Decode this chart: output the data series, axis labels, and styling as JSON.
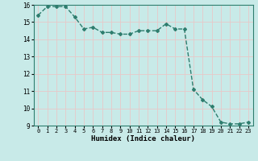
{
  "x": [
    0,
    1,
    2,
    3,
    4,
    5,
    6,
    7,
    8,
    9,
    10,
    11,
    12,
    13,
    14,
    15,
    16,
    17,
    18,
    19,
    20,
    21,
    22,
    23
  ],
  "y": [
    15.4,
    15.9,
    15.9,
    15.9,
    15.3,
    14.6,
    14.7,
    14.4,
    14.4,
    14.3,
    14.3,
    14.5,
    14.5,
    14.5,
    14.9,
    14.6,
    14.6,
    11.1,
    10.5,
    10.1,
    9.2,
    9.1,
    9.1,
    9.2
  ],
  "xlabel": "Humidex (Indice chaleur)",
  "ylim": [
    9,
    16
  ],
  "xlim": [
    -0.5,
    23.5
  ],
  "yticks": [
    9,
    10,
    11,
    12,
    13,
    14,
    15,
    16
  ],
  "xticks": [
    0,
    1,
    2,
    3,
    4,
    5,
    6,
    7,
    8,
    9,
    10,
    11,
    12,
    13,
    14,
    15,
    16,
    17,
    18,
    19,
    20,
    21,
    22,
    23
  ],
  "line_color": "#2e7d6e",
  "bg_color": "#c8eae8",
  "grid_color": "#e8c8c8",
  "marker": "D",
  "marker_size": 2.0,
  "line_width": 1.0
}
